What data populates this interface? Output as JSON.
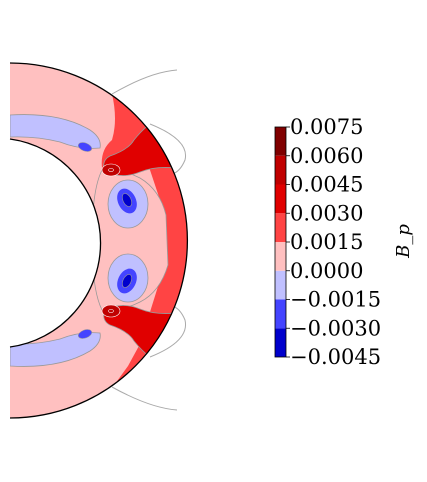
{
  "chart_data": {
    "type": "contour",
    "description_field": "poloidal field B_p on a spherical shell meridional half-section",
    "colorbar": {
      "label": "B_p",
      "ticks": [
        "0.0075",
        "0.0060",
        "0.0045",
        "0.0030",
        "0.0015",
        "0.0000",
        "−0.0015",
        "−0.0030",
        "−0.0045"
      ],
      "levels": [
        -0.0045,
        -0.003,
        -0.0015,
        0.0,
        0.0015,
        0.003,
        0.0045,
        0.006,
        0.0075
      ],
      "band_colors": [
        "#0000cc",
        "#4444ff",
        "#c0c0ff",
        "#ffc0c0",
        "#ff4444",
        "#e00000",
        "#c00000",
        "#800000"
      ]
    },
    "colors": {
      "pink": "#ffc0c0",
      "light_blue": "#c0c0ff",
      "red": "#ff4444",
      "dark_red": "#e00000",
      "blue": "#4444ff",
      "deep_blue": "#0000cc",
      "contour_line": "#999999",
      "field_line": "#aaaaaa"
    }
  }
}
